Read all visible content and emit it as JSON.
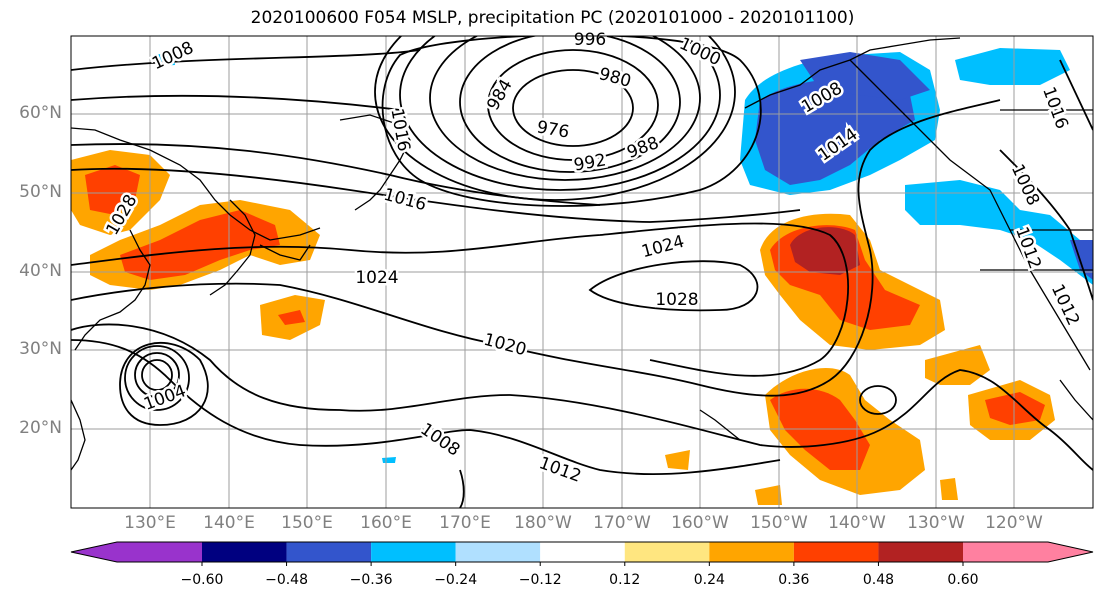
{
  "title": "2020100600 F054 MSLP, precipitation PC (2020101000 - 2020101100)",
  "lat_labels": [
    "60°N",
    "50°N",
    "40°N",
    "30°N",
    "20°N"
  ],
  "lon_labels": [
    "130°E",
    "140°E",
    "150°E",
    "160°E",
    "170°E",
    "180°W",
    "170°W",
    "160°W",
    "150°W",
    "140°W",
    "130°W",
    "120°W"
  ],
  "contour_labels": [
    "1008",
    "996",
    "1000",
    "1016",
    "984",
    "980",
    "976",
    "1008",
    "992",
    "988",
    "1014",
    "1016",
    "1028",
    "1016",
    "1008",
    "1024",
    "1012",
    "1024",
    "1028",
    "1012",
    "1020",
    "1004",
    "1008",
    "1012"
  ],
  "colorbar": {
    "ticks": [
      "−0.60",
      "−0.48",
      "−0.36",
      "−0.24",
      "−0.12",
      "0.12",
      "0.24",
      "0.36",
      "0.48",
      "0.60"
    ],
    "colors": [
      "#9933cc",
      "#000080",
      "#3355cc",
      "#00bfff",
      "#b0e0ff",
      "#ffffff",
      "#ffe680",
      "#ffa500",
      "#ff4000",
      "#b22222",
      "#ff80a0"
    ]
  }
}
